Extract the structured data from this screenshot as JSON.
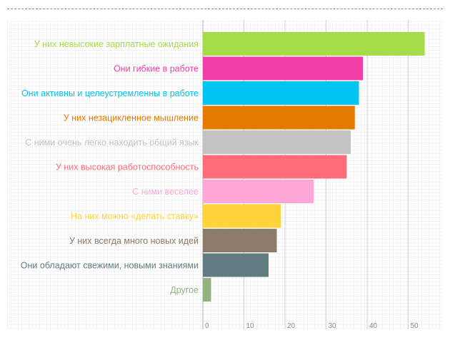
{
  "chart_data": {
    "type": "bar",
    "orientation": "horizontal",
    "categories": [
      "У них невысокие зарплатные ожидания",
      "Они гибкие в работе",
      "Они активны и целеустремленны в работе",
      "У них незацикленное мышление",
      "С ними очень легко находить общий язык",
      "У них высокая работоспособность",
      "С ними веселее",
      "На них можно «делать ставку»",
      "У них всегда много новых идей",
      "Они обладают свежими, новыми знаниями",
      "Другое"
    ],
    "values": [
      54,
      39,
      38,
      37,
      36,
      35,
      27,
      19,
      18,
      16,
      2
    ],
    "colors": [
      "#a6dc4a",
      "#f23ea8",
      "#00c4f0",
      "#e57a00",
      "#c3c3c3",
      "#ff6e78",
      "#ffa8d8",
      "#ffd43a",
      "#8b7b68",
      "#617d82",
      "#93b482"
    ],
    "xticks": [
      0,
      10,
      20,
      30,
      40,
      50
    ],
    "xlim": [
      0,
      60
    ],
    "grid": true,
    "title": "",
    "xlabel": "",
    "ylabel": ""
  }
}
